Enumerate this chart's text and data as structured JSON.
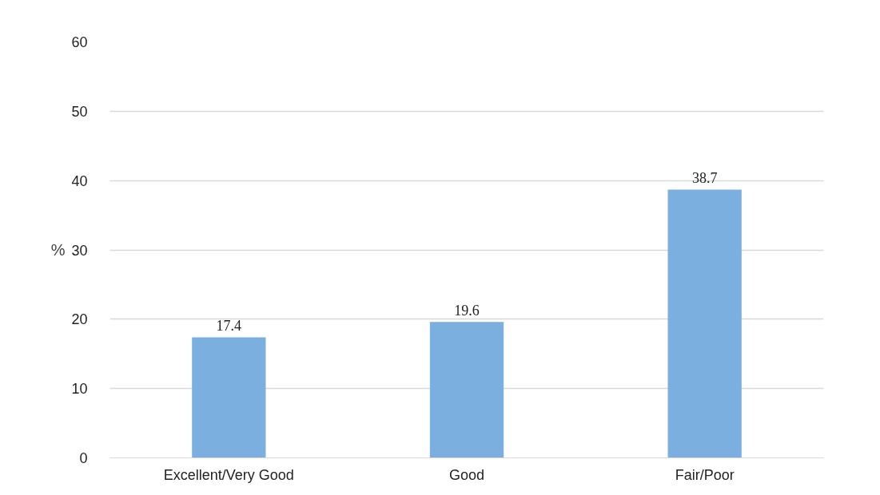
{
  "chart_data": {
    "type": "bar",
    "ylabel": "%",
    "categories": [
      "Excellent/Very Good",
      "Good",
      "Fair/Poor"
    ],
    "values": [
      17.4,
      19.6,
      38.7
    ],
    "color": "#7aafe0",
    "ylim": [
      0,
      60
    ],
    "yticks": [
      0,
      10,
      20,
      30,
      40,
      50,
      60
    ],
    "grid": "y",
    "data_labels": true
  }
}
